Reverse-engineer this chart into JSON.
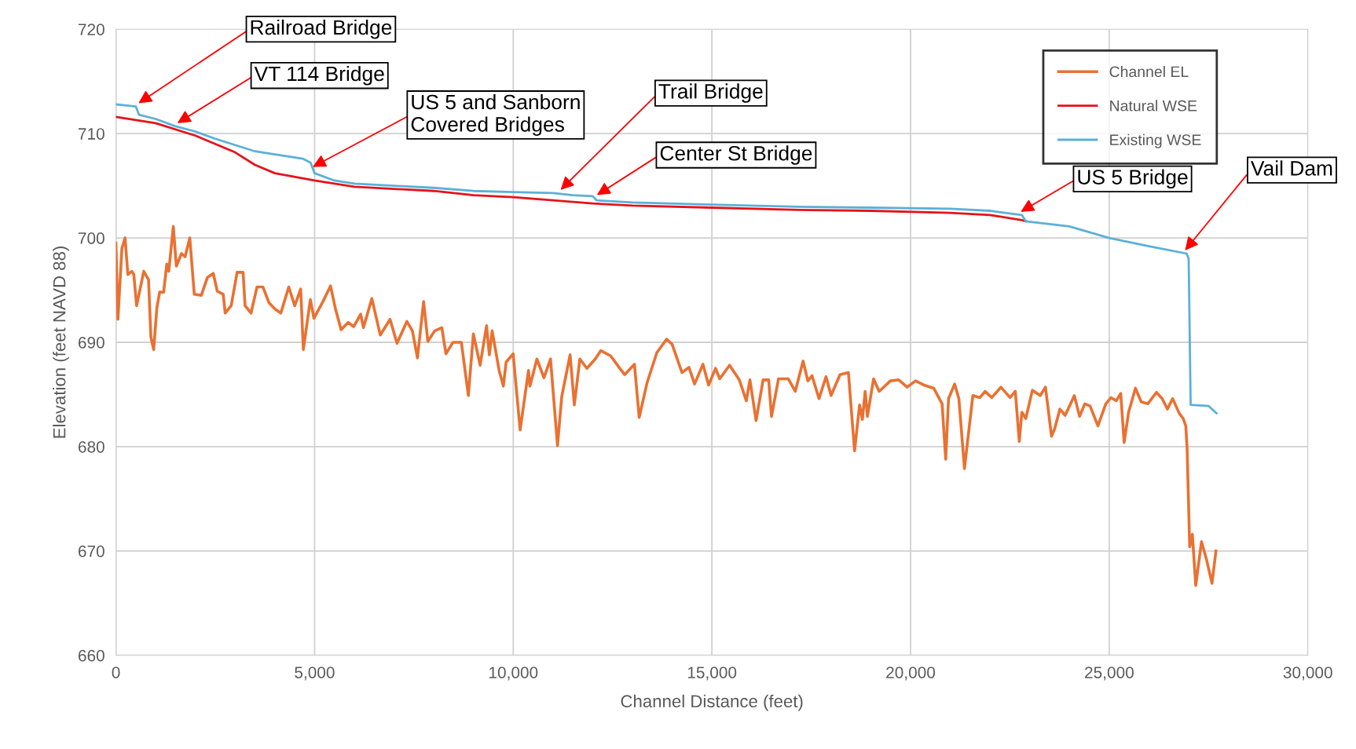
{
  "chart_data": {
    "type": "line",
    "xlabel": "Channel Distance (feet)",
    "ylabel": "Elevation (feet NAVD 88)",
    "xlim": [
      0,
      30000
    ],
    "xticks": [
      0,
      {
        "value": 5000,
        "label": "5,000"
      },
      {
        "value": 10000,
        "label": "10,000"
      },
      {
        "value": 15000,
        "label": "15,000"
      },
      {
        "value": 20000,
        "label": "20,000"
      },
      {
        "value": 25000,
        "label": "25,000"
      },
      {
        "value": 30000,
        "label": "30,000"
      }
    ],
    "ylim": [
      660,
      720
    ],
    "yticks": [
      660,
      670,
      680,
      690,
      700,
      710,
      720
    ],
    "grid": true,
    "legend": "top right",
    "marker": "none",
    "line_style": "solid",
    "series": [
      {
        "name": "Channel EL",
        "color": "#e97132",
        "x": [
          0,
          50,
          150,
          230,
          300,
          400,
          450,
          520,
          700,
          820,
          880,
          950,
          1030,
          1100,
          1200,
          1280,
          1330,
          1444,
          1520,
          1650,
          1740,
          1859,
          1972,
          2150,
          2300,
          2450,
          2550,
          2700,
          2750,
          2900,
          3050,
          3200,
          3250,
          3400,
          3550,
          3700,
          3850,
          4000,
          4150,
          4350,
          4500,
          4650,
          4717,
          4893,
          4984,
          5210,
          5400,
          5526,
          5667,
          5843,
          5984,
          6160,
          6230,
          6441,
          6653,
          6899,
          7075,
          7322,
          7462,
          7589,
          7744,
          7850,
          8026,
          8202,
          8307,
          8483,
          8694,
          8870,
          8997,
          9166,
          9328,
          9398,
          9469,
          9645,
          9750,
          9821,
          9997,
          10173,
          10384,
          10420,
          10596,
          10772,
          10938,
          11114,
          11220,
          11431,
          11537,
          11677,
          11853,
          12064,
          12205,
          12452,
          12663,
          12804,
          13050,
          13170,
          13367,
          13613,
          13860,
          14000,
          14246,
          14423,
          14564,
          14775,
          14916,
          15092,
          15197,
          15444,
          15690,
          15866,
          15957,
          16112,
          16288,
          16429,
          16500,
          16676,
          16922,
          17098,
          17295,
          17415,
          17520,
          17696,
          17872,
          17999,
          18224,
          18436,
          18590,
          18717,
          18787,
          18858,
          18914,
          19069,
          19210,
          19492,
          19703,
          19914,
          20125,
          20336,
          20583,
          20794,
          20885,
          20956,
          21110,
          21216,
          21357,
          21568,
          21746,
          21878,
          22043,
          22274,
          22505,
          22637,
          22736,
          22802,
          22901,
          23066,
          23264,
          23396,
          23548,
          23627,
          23759,
          23891,
          23990,
          24122,
          24254,
          24386,
          24518,
          24716,
          24914,
          25046,
          25178,
          25290,
          25376,
          25488,
          25660,
          25805,
          25970,
          26188,
          26333,
          26465,
          26597,
          26762,
          26861,
          26927,
          26960,
          27026,
          27093,
          27178,
          27323,
          27455,
          27587,
          27686
        ],
        "values": [
          699.5,
          692.2,
          699,
          700,
          696.5,
          696.8,
          696.5,
          693.5,
          696.8,
          696,
          690.5,
          689.3,
          693.3,
          694.8,
          694.8,
          697.5,
          696.8,
          701.1,
          697.3,
          698.5,
          698.2,
          700,
          694.6,
          694.5,
          696.2,
          696.6,
          694.9,
          694.6,
          692.8,
          693.5,
          696.7,
          696.7,
          693.5,
          692.8,
          695.3,
          695.3,
          693.8,
          693.2,
          692.8,
          695.3,
          693.5,
          695.1,
          689.3,
          694.1,
          692.3,
          693.9,
          695.4,
          693.2,
          691.2,
          691.9,
          691.5,
          692.7,
          691.4,
          694.2,
          690.7,
          692.2,
          689.9,
          692,
          691.1,
          688.5,
          693.9,
          690.1,
          691.1,
          691.4,
          688.9,
          690,
          690,
          684.9,
          690.8,
          687.8,
          691.6,
          688.8,
          691.1,
          687.3,
          685.8,
          688.1,
          688.9,
          681.6,
          687.3,
          685.8,
          688.4,
          686.6,
          688.4,
          680.1,
          684.8,
          688.8,
          684,
          688.4,
          687.5,
          688.4,
          689.2,
          688.7,
          687.6,
          686.9,
          687.9,
          682.8,
          686.1,
          689,
          690.3,
          689.8,
          687.1,
          687.6,
          686,
          687.9,
          685.9,
          687.5,
          686.5,
          687.8,
          686.4,
          684.4,
          686.4,
          682.5,
          686.4,
          686.4,
          682.9,
          686.5,
          686.5,
          685.3,
          688.2,
          686.3,
          686.8,
          684.6,
          686.7,
          684.9,
          686.9,
          687.1,
          679.6,
          684,
          682.6,
          685.3,
          682.9,
          686.5,
          685.3,
          686.3,
          686.4,
          685.7,
          686.3,
          685.9,
          685.6,
          684.1,
          678.8,
          684.6,
          686,
          684.6,
          677.9,
          684.9,
          684.7,
          685.3,
          684.7,
          685.7,
          684.7,
          685.3,
          680.5,
          683.3,
          682.7,
          685.4,
          684.9,
          685.7,
          681,
          681.7,
          683.6,
          683,
          683.8,
          684.9,
          682.9,
          684.1,
          683.9,
          682,
          684.1,
          684.7,
          684.4,
          685.1,
          680.4,
          683.3,
          685.6,
          684.3,
          684.1,
          685.2,
          684.6,
          683.6,
          684.6,
          683.2,
          682.7,
          682,
          679.9,
          670.4,
          671.6,
          666.7,
          670.9,
          669.1,
          666.9,
          670
        ]
      },
      {
        "name": "Natural WSE",
        "color": "#e4141b",
        "x": [
          0,
          1000,
          2000,
          3000,
          3500,
          4000,
          5000,
          6000,
          7000,
          8000,
          9000,
          10000,
          11000,
          12000,
          13000,
          15000,
          17000,
          19000,
          21000,
          22000,
          22800,
          22900
        ],
        "values": [
          711.6,
          711,
          709.8,
          708.2,
          707,
          706.2,
          705.5,
          704.9,
          704.7,
          704.5,
          704.1,
          703.9,
          703.6,
          703.3,
          703.1,
          702.9,
          702.7,
          702.6,
          702.4,
          702.2,
          701.7,
          701.6
        ]
      },
      {
        "name": "Existing WSE",
        "color": "#5bb0d8",
        "x": [
          0,
          500,
          580,
          1000,
          1500,
          2000,
          2500,
          3000,
          3500,
          4000,
          4700,
          4900,
          5000,
          5500,
          6000,
          7000,
          8000,
          9000,
          10000,
          11000,
          11500,
          12000,
          12100,
          13000,
          15000,
          17000,
          19000,
          21000,
          22000,
          22800,
          22900,
          24000,
          25000,
          26000,
          26950,
          27000,
          27050,
          27500,
          27700
        ],
        "values": [
          712.8,
          712.6,
          711.8,
          711.4,
          710.7,
          710.2,
          709.5,
          708.9,
          708.3,
          708,
          707.6,
          707.2,
          706.2,
          705.5,
          705.2,
          705,
          704.8,
          704.5,
          704.4,
          704.3,
          704.1,
          704,
          703.6,
          703.4,
          703.2,
          703,
          702.9,
          702.8,
          702.6,
          702.2,
          701.6,
          701.1,
          700,
          699.2,
          698.5,
          698,
          684,
          683.9,
          683.2
        ]
      }
    ],
    "annotations": [
      {
        "text": "Railroad Bridge",
        "x": 566,
        "y": 712.9
      },
      {
        "text": "VT 114 Bridge",
        "x": 1546,
        "y": 711
      },
      {
        "text": "US 5 and Sanborn\nCovered Bridges",
        "x": 4950,
        "y": 706.8
      },
      {
        "text": "Trail Bridge",
        "x": 11190,
        "y": 704.6
      },
      {
        "text": "Center St Bridge",
        "x": 12104,
        "y": 704.1
      },
      {
        "text": "US 5 Bridge",
        "x": 22772,
        "y": 702.5
      },
      {
        "text": "Vail Dam",
        "x": 26908,
        "y": 698.8
      }
    ]
  }
}
